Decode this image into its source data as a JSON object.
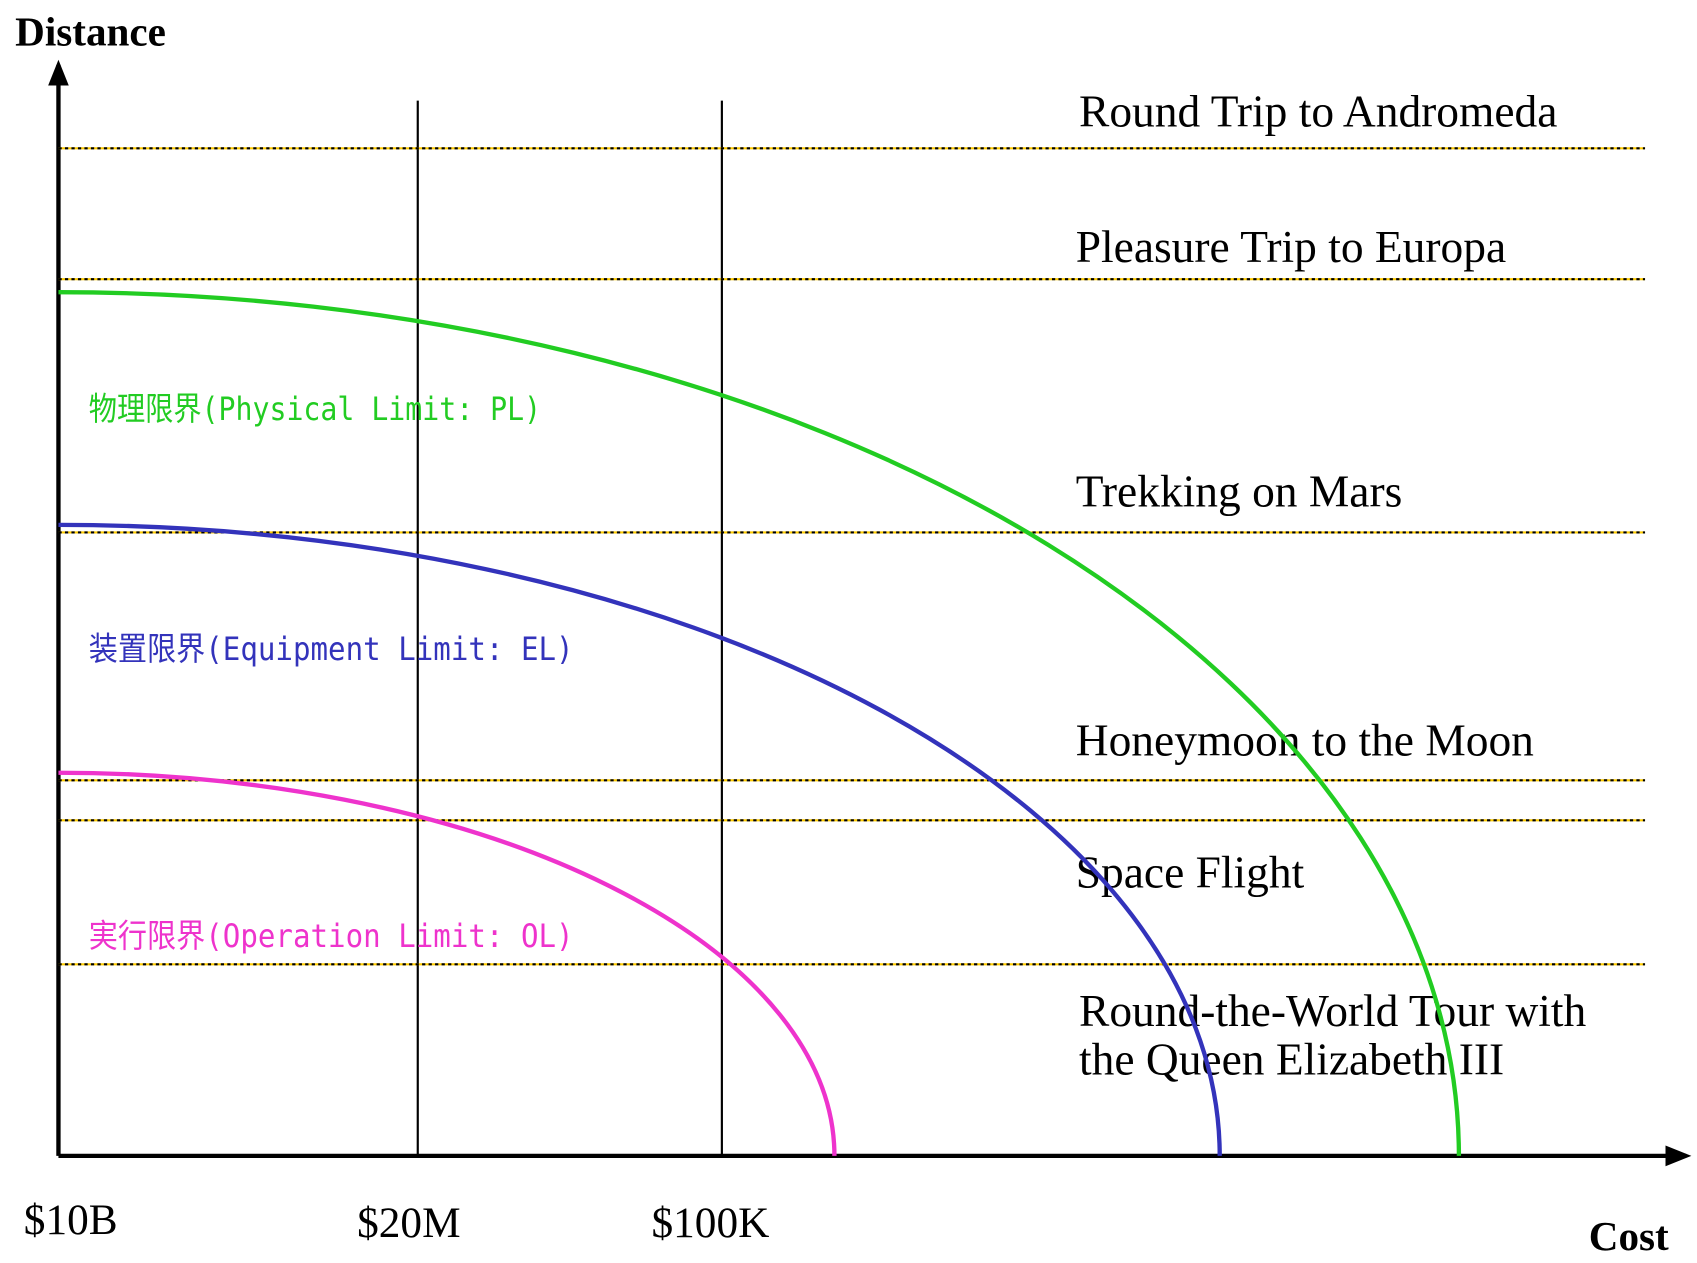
{
  "axes": {
    "y_label": "Distance",
    "x_label": "Cost",
    "x_labels": [
      "$10B",
      "$20M",
      "$100K"
    ]
  },
  "levels": [
    {
      "lines": [
        "Round Trip to Andromeda"
      ]
    },
    {
      "lines": [
        "Pleasure Trip to Europa"
      ]
    },
    {
      "lines": [
        "Trekking on Mars"
      ]
    },
    {
      "lines": [
        "Honeymoon to the Moon"
      ]
    },
    {
      "lines": [
        "Space Flight"
      ]
    },
    {
      "lines": [
        "Round-the-World Tour with",
        "the Queen Elizabeth III"
      ]
    }
  ],
  "curves": [
    {
      "label": "物理限界(Physical Limit: PL)"
    },
    {
      "label": "装置限界(Equipment Limit: EL)"
    },
    {
      "label": "実行限界(Operation Limit: OL)"
    }
  ]
}
